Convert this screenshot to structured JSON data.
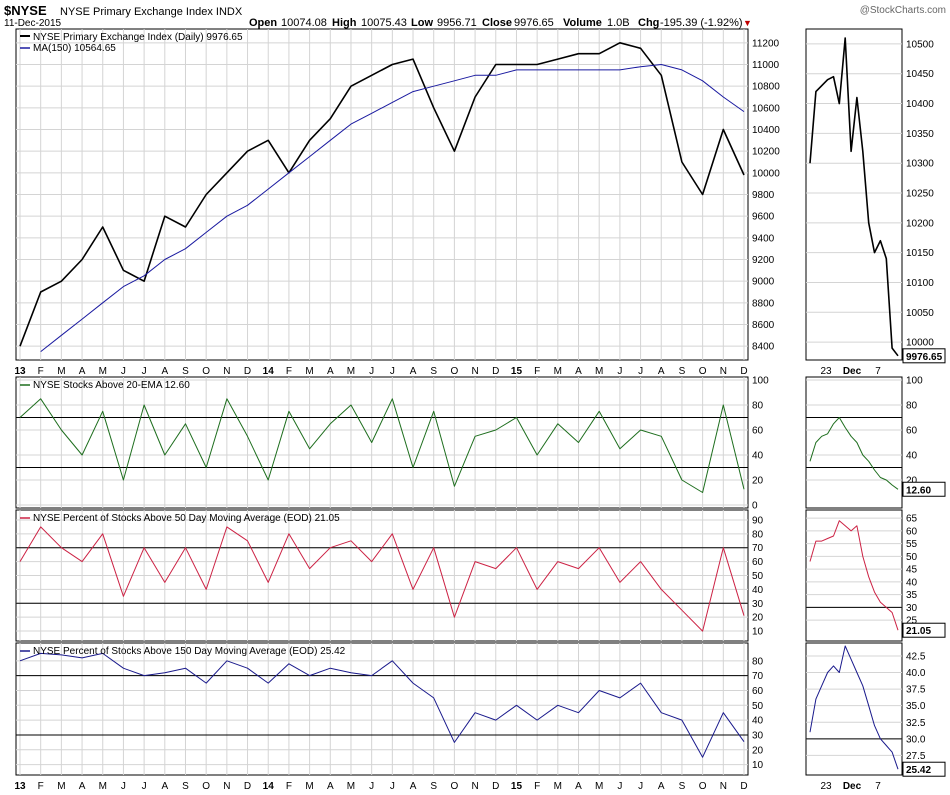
{
  "header": {
    "symbol": "$NYSE",
    "name": "NYSE Primary Exchange Index INDX",
    "date": "11-Dec-2015",
    "open_label": "Open",
    "open": "10074.08",
    "high_label": "High",
    "high": "10075.43",
    "low_label": "Low",
    "low": "9956.71",
    "close_label": "Close",
    "close": "9976.65",
    "volume_label": "Volume",
    "volume": "1.0B",
    "chg_label": "Chg",
    "chg": "-195.39 (-1.92%)",
    "chg_marker": "▼",
    "watermark": "@StockCharts.com"
  },
  "colors": {
    "price": "#000000",
    "ma": "#1a1aa0",
    "ema20": "#1e6e1e",
    "ma50": "#cc2244",
    "ma150": "#1a1a8c"
  },
  "x_axis_labels": [
    "13",
    "F",
    "M",
    "A",
    "M",
    "J",
    "J",
    "A",
    "S",
    "O",
    "N",
    "D",
    "14",
    "F",
    "M",
    "A",
    "M",
    "J",
    "J",
    "A",
    "S",
    "O",
    "N",
    "D",
    "15",
    "F",
    "M",
    "A",
    "M",
    "J",
    "J",
    "A",
    "S",
    "O",
    "N",
    "D"
  ],
  "right_x_axis_labels": [
    "23",
    "Dec",
    "7"
  ],
  "chart_data": [
    {
      "id": "price",
      "type": "line",
      "title": "NYSE Primary Exchange Index (Daily) 9976.65",
      "ma_legend": "MA(150) 10564.65",
      "series": [
        {
          "name": "NYSE Primary Exchange Index",
          "x": [
            0,
            1,
            2,
            3,
            4,
            5,
            6,
            7,
            8,
            9,
            10,
            11,
            12,
            13,
            14,
            15,
            16,
            17,
            18,
            19,
            20,
            21,
            22,
            23,
            24,
            25,
            26,
            27,
            28,
            29,
            30,
            31,
            32,
            33,
            34,
            35
          ],
          "values": [
            8400,
            8900,
            9000,
            9200,
            9500,
            9100,
            9000,
            9600,
            9500,
            9800,
            10000,
            10200,
            10300,
            10000,
            10300,
            10500,
            10800,
            10900,
            11000,
            11050,
            10600,
            10200,
            10700,
            11000,
            11000,
            11000,
            11050,
            11100,
            11100,
            11200,
            11150,
            10900,
            10100,
            9800,
            10400,
            9980
          ]
        },
        {
          "name": "MA(150)",
          "x": [
            1,
            2,
            3,
            4,
            5,
            6,
            7,
            8,
            9,
            10,
            11,
            12,
            13,
            14,
            15,
            16,
            17,
            18,
            19,
            20,
            21,
            22,
            23,
            24,
            25,
            26,
            27,
            28,
            29,
            30,
            31,
            32,
            33,
            34,
            35
          ],
          "values": [
            8350,
            8500,
            8650,
            8800,
            8950,
            9050,
            9200,
            9300,
            9450,
            9600,
            9700,
            9850,
            10000,
            10150,
            10300,
            10450,
            10550,
            10650,
            10750,
            10800,
            10850,
            10900,
            10900,
            10950,
            10950,
            10950,
            10950,
            10950,
            10950,
            10980,
            11000,
            10950,
            10850,
            10700,
            10565
          ]
        }
      ],
      "y_ticks": [
        8400,
        8600,
        8800,
        9000,
        9200,
        9400,
        9600,
        9800,
        10000,
        10200,
        10400,
        10600,
        10800,
        11000,
        11200
      ],
      "ylim": [
        8300,
        11300
      ],
      "last_label": "9976.65"
    },
    {
      "id": "price_zoom",
      "type": "line",
      "series": [
        {
          "name": "NYSE Primary Exchange Index",
          "x": [
            0,
            1,
            2,
            3,
            4,
            5,
            6,
            7,
            8,
            9,
            10,
            11,
            12,
            13,
            14,
            15
          ],
          "values": [
            10300,
            10420,
            10430,
            10440,
            10445,
            10400,
            10510,
            10320,
            10410,
            10320,
            10200,
            10150,
            10170,
            10140,
            9990,
            9977
          ]
        }
      ],
      "y_ticks": [
        10000,
        10050,
        10100,
        10150,
        10200,
        10250,
        10300,
        10350,
        10400,
        10450,
        10500
      ],
      "ylim": [
        9975,
        10520
      ],
      "last_label": "9976.65"
    },
    {
      "id": "ema20",
      "type": "line",
      "title": "NYSE Stocks Above 20-EMA 12.60",
      "series": [
        {
          "name": "Stocks Above 20-EMA",
          "x": [
            0,
            1,
            2,
            3,
            4,
            5,
            6,
            7,
            8,
            9,
            10,
            11,
            12,
            13,
            14,
            15,
            16,
            17,
            18,
            19,
            20,
            21,
            22,
            23,
            24,
            25,
            26,
            27,
            28,
            29,
            30,
            31,
            32,
            33,
            34,
            35
          ],
          "values": [
            70,
            85,
            60,
            40,
            75,
            20,
            80,
            40,
            65,
            30,
            85,
            55,
            20,
            75,
            45,
            65,
            80,
            50,
            85,
            30,
            75,
            15,
            55,
            60,
            70,
            40,
            65,
            50,
            75,
            45,
            60,
            55,
            20,
            10,
            80,
            12.6
          ]
        }
      ],
      "ref_lines": [
        30,
        70
      ],
      "y_ticks": [
        0,
        20,
        40,
        60,
        80,
        100
      ],
      "ylim": [
        0,
        100
      ],
      "last_label": "12.60"
    },
    {
      "id": "ema20_zoom",
      "type": "line",
      "series": [
        {
          "name": "Stocks Above 20-EMA",
          "x": [
            0,
            1,
            2,
            3,
            4,
            5,
            6,
            7,
            8,
            9,
            10,
            11,
            12,
            13,
            14,
            15
          ],
          "values": [
            35,
            50,
            55,
            57,
            65,
            70,
            62,
            55,
            50,
            40,
            35,
            28,
            22,
            20,
            16,
            12.6
          ]
        }
      ],
      "ref_lines": [
        30,
        70
      ],
      "y_ticks": [
        20,
        40,
        60,
        80,
        100
      ],
      "ylim": [
        0,
        100
      ],
      "last_label": "12.60"
    },
    {
      "id": "ma50",
      "type": "line",
      "title": "NYSE Percent of Stocks Above 50 Day Moving Average (EOD) 21.05",
      "series": [
        {
          "name": "Stocks Above 50 DMA",
          "x": [
            0,
            1,
            2,
            3,
            4,
            5,
            6,
            7,
            8,
            9,
            10,
            11,
            12,
            13,
            14,
            15,
            16,
            17,
            18,
            19,
            20,
            21,
            22,
            23,
            24,
            25,
            26,
            27,
            28,
            29,
            30,
            31,
            32,
            33,
            34,
            35
          ],
          "values": [
            60,
            85,
            70,
            60,
            80,
            35,
            70,
            45,
            70,
            40,
            85,
            75,
            45,
            80,
            55,
            70,
            75,
            60,
            80,
            40,
            70,
            20,
            60,
            55,
            70,
            40,
            60,
            55,
            70,
            45,
            60,
            40,
            25,
            10,
            70,
            21.05
          ]
        }
      ],
      "ref_lines": [
        30,
        70
      ],
      "y_ticks": [
        10,
        20,
        30,
        40,
        50,
        60,
        70,
        80,
        90
      ],
      "ylim": [
        5,
        95
      ],
      "last_label": "21.05"
    },
    {
      "id": "ma50_zoom",
      "type": "line",
      "series": [
        {
          "name": "Stocks Above 50 DMA",
          "x": [
            0,
            1,
            2,
            3,
            4,
            5,
            6,
            7,
            8,
            9,
            10,
            11,
            12,
            13,
            14,
            15
          ],
          "values": [
            48,
            56,
            56,
            57,
            58,
            64,
            62,
            60,
            62,
            50,
            42,
            36,
            32,
            30,
            28,
            21.05
          ]
        }
      ],
      "ref_lines": [
        30
      ],
      "y_ticks": [
        25,
        30,
        35,
        40,
        45,
        50,
        55,
        60,
        65
      ],
      "ylim": [
        18,
        67
      ],
      "last_label": "21.05"
    },
    {
      "id": "ma150",
      "type": "line",
      "title": "NYSE Percent of Stocks Above 150 Day Moving Average (EOD) 25.42",
      "series": [
        {
          "name": "Stocks Above 150 DMA",
          "x": [
            0,
            1,
            2,
            3,
            4,
            5,
            6,
            7,
            8,
            9,
            10,
            11,
            12,
            13,
            14,
            15,
            16,
            17,
            18,
            19,
            20,
            21,
            22,
            23,
            24,
            25,
            26,
            27,
            28,
            29,
            30,
            31,
            32,
            33,
            34,
            35
          ],
          "values": [
            80,
            85,
            84,
            82,
            85,
            75,
            70,
            72,
            75,
            65,
            80,
            75,
            65,
            78,
            70,
            75,
            72,
            70,
            80,
            65,
            55,
            25,
            45,
            40,
            50,
            40,
            50,
            45,
            60,
            55,
            65,
            45,
            40,
            15,
            45,
            25.42
          ]
        }
      ],
      "ref_lines": [
        30,
        70
      ],
      "y_ticks": [
        10,
        20,
        30,
        40,
        50,
        60,
        70,
        80
      ],
      "ylim": [
        5,
        90
      ],
      "last_label": "25.42"
    },
    {
      "id": "ma150_zoom",
      "type": "line",
      "series": [
        {
          "name": "Stocks Above 150 DMA",
          "x": [
            0,
            1,
            2,
            3,
            4,
            5,
            6,
            7,
            8,
            9,
            10,
            11,
            12,
            13,
            14,
            15
          ],
          "values": [
            31,
            36,
            38,
            40,
            41,
            40,
            44,
            42,
            40,
            38,
            35,
            32,
            30,
            29,
            28,
            25.42
          ]
        }
      ],
      "ref_lines": [
        30
      ],
      "y_ticks": [
        27.5,
        30.0,
        32.5,
        35.0,
        37.5,
        40.0,
        42.5
      ],
      "ylim": [
        25,
        44
      ],
      "last_label": "25.42"
    }
  ]
}
